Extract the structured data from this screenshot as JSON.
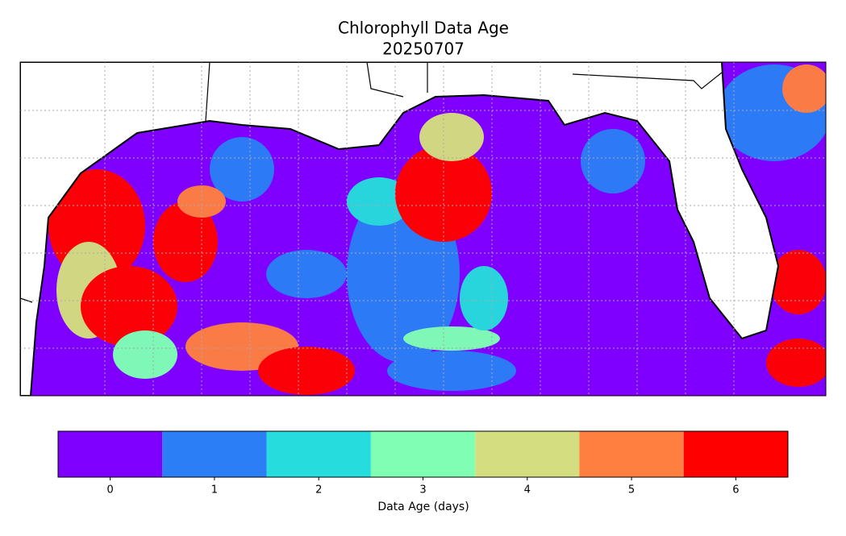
{
  "title": "Chlorophyll Data Age",
  "subtitle": "20250707",
  "colorbar": {
    "label": "Data Age (days)",
    "ticks": [
      0,
      1,
      2,
      3,
      4,
      5,
      6
    ],
    "colors": [
      "#7f00ff",
      "#2b7ef6",
      "#26dcdc",
      "#80ffb4",
      "#d4dd80",
      "#fe7f40",
      "#ff0000"
    ]
  }
}
